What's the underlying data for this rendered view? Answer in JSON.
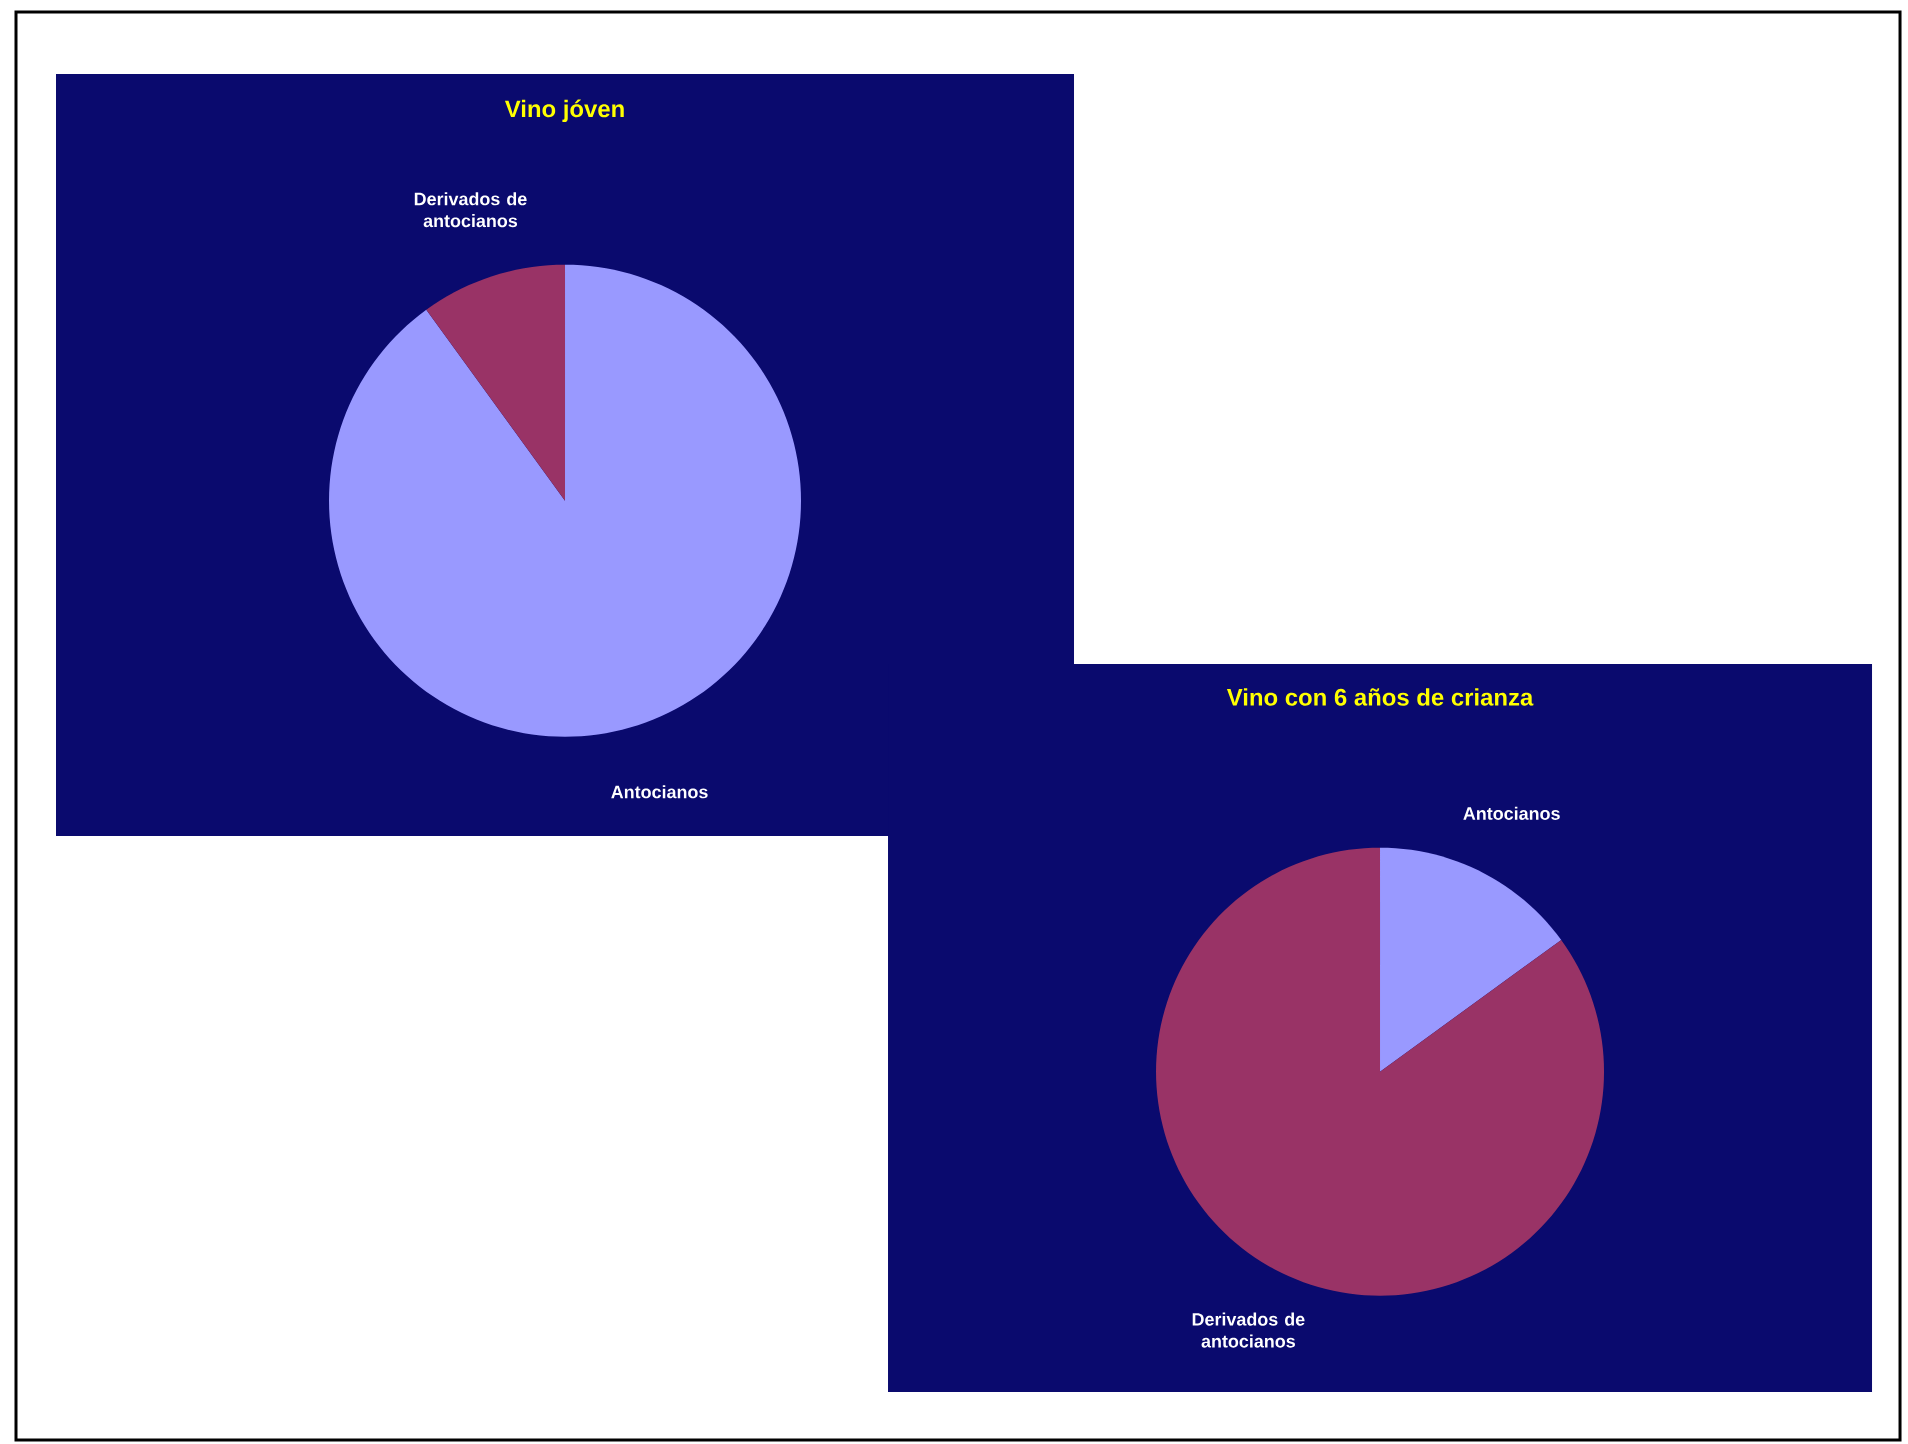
{
  "chart_data": [
    {
      "type": "pie",
      "title": "Vino jóven",
      "categories": [
        "Antocianos",
        "Derivados de antocianos"
      ],
      "values": [
        90,
        10
      ],
      "colors": [
        "#9999ff",
        "#993366"
      ]
    },
    {
      "type": "pie",
      "title": "Vino con 6 años de crianza",
      "categories": [
        "Antocianos",
        "Derivados de antocianos"
      ],
      "values": [
        15,
        85
      ],
      "colors": [
        "#9999ff",
        "#993366"
      ]
    }
  ]
}
